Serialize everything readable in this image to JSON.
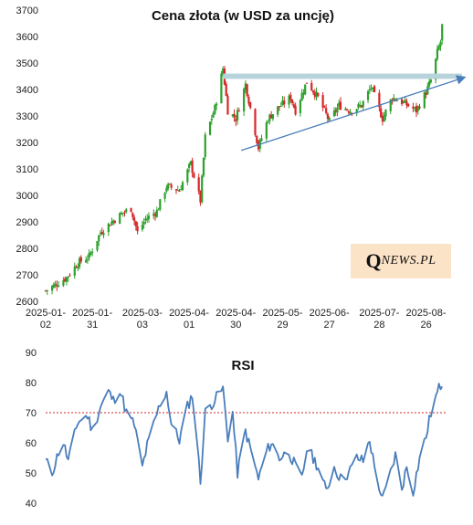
{
  "chart_data": [
    {
      "type": "candlestick",
      "title": "Cena złota (w USD za uncję)",
      "ylim": [
        2600,
        3700
      ],
      "yticks": [
        2600,
        2700,
        2800,
        2900,
        3000,
        3100,
        3200,
        3300,
        3400,
        3500,
        3600,
        3700
      ],
      "xlim": [
        "2025-01-02",
        "2025-09-06"
      ],
      "xtick_dates": [
        "2025-01-02",
        "2025-01-31",
        "2025-03-03",
        "2025-04-01",
        "2025-04-30",
        "2025-05-29",
        "2025-06-27",
        "2025-07-28",
        "2025-08-26"
      ],
      "xtick_labels": [
        [
          "2025-01-",
          "02"
        ],
        [
          "2025-01-",
          "31"
        ],
        [
          "2025-03-",
          "03"
        ],
        [
          "2025-04-",
          "01"
        ],
        [
          "2025-04-",
          "30"
        ],
        [
          "2025-05-",
          "29"
        ],
        [
          "2025-06-",
          "27"
        ],
        [
          "2025-07-",
          "28"
        ],
        [
          "2025-08-",
          "26"
        ]
      ],
      "close_path": [
        [
          "2025-01-02",
          2640
        ],
        [
          "2025-01-08",
          2662
        ],
        [
          "2025-01-15",
          2690
        ],
        [
          "2025-01-22",
          2745
        ],
        [
          "2025-01-29",
          2770
        ],
        [
          "2025-02-05",
          2860
        ],
        [
          "2025-02-12",
          2900
        ],
        [
          "2025-02-19",
          2935
        ],
        [
          "2025-02-24",
          2950
        ],
        [
          "2025-02-28",
          2860
        ],
        [
          "2025-03-05",
          2910
        ],
        [
          "2025-03-12",
          2940
        ],
        [
          "2025-03-18",
          3035
        ],
        [
          "2025-03-26",
          3020
        ],
        [
          "2025-04-02",
          3120
        ],
        [
          "2025-04-08",
          2980
        ],
        [
          "2025-04-11",
          3220
        ],
        [
          "2025-04-17",
          3330
        ],
        [
          "2025-04-22",
          3480
        ],
        [
          "2025-04-25",
          3320
        ],
        [
          "2025-04-30",
          3290
        ],
        [
          "2025-05-06",
          3420
        ],
        [
          "2025-05-09",
          3330
        ],
        [
          "2025-05-14",
          3180
        ],
        [
          "2025-05-20",
          3290
        ],
        [
          "2025-05-26",
          3330
        ],
        [
          "2025-06-03",
          3370
        ],
        [
          "2025-06-06",
          3320
        ],
        [
          "2025-06-13",
          3430
        ],
        [
          "2025-06-20",
          3370
        ],
        [
          "2025-06-27",
          3280
        ],
        [
          "2025-07-03",
          3340
        ],
        [
          "2025-07-10",
          3320
        ],
        [
          "2025-07-17",
          3340
        ],
        [
          "2025-07-23",
          3410
        ],
        [
          "2025-07-30",
          3290
        ],
        [
          "2025-08-05",
          3370
        ],
        [
          "2025-08-12",
          3350
        ],
        [
          "2025-08-20",
          3320
        ],
        [
          "2025-08-26",
          3390
        ],
        [
          "2025-08-30",
          3450
        ],
        [
          "2025-09-02",
          3540
        ],
        [
          "2025-09-04",
          3580
        ],
        [
          "2025-09-05",
          3640
        ],
        [
          "2025-09-06",
          3630
        ]
      ],
      "resistance_band": {
        "y_low": 3440,
        "y_high": 3460,
        "x_start": "2025-04-22",
        "x_end": "2025-09-06"
      },
      "trendline": {
        "start": [
          "2025-04-22",
          3170
        ],
        "end": [
          "2025-09-06",
          3445
        ]
      },
      "colors": {
        "up": "#2ca02c",
        "down": "#d62728",
        "band": "#b7d3dc",
        "trendline": "#4a7ebb"
      },
      "grid": false
    },
    {
      "type": "line",
      "title": "RSI",
      "ylim": [
        40,
        90
      ],
      "yticks": [
        40,
        50,
        60,
        70,
        80,
        90
      ],
      "reference_line": {
        "y": 70,
        "color": "#d62728",
        "style": "dotted"
      },
      "line_color": "#4a7ebb",
      "points": [
        [
          "2025-01-02",
          54
        ],
        [
          "2025-01-06",
          50
        ],
        [
          "2025-01-10",
          57
        ],
        [
          "2025-01-13",
          60
        ],
        [
          "2025-01-16",
          54
        ],
        [
          "2025-01-22",
          67
        ],
        [
          "2025-01-28",
          69
        ],
        [
          "2025-01-31",
          64
        ],
        [
          "2025-02-05",
          72
        ],
        [
          "2025-02-10",
          77
        ],
        [
          "2025-02-13",
          74
        ],
        [
          "2025-02-17",
          78
        ],
        [
          "2025-02-21",
          70
        ],
        [
          "2025-02-26",
          66
        ],
        [
          "2025-03-03",
          52
        ],
        [
          "2025-03-06",
          59
        ],
        [
          "2025-03-10",
          66
        ],
        [
          "2025-03-14",
          73
        ],
        [
          "2025-03-18",
          77
        ],
        [
          "2025-03-21",
          66
        ],
        [
          "2025-03-26",
          61
        ],
        [
          "2025-03-31",
          72
        ],
        [
          "2025-04-03",
          76
        ],
        [
          "2025-04-06",
          60
        ],
        [
          "2025-04-08",
          47
        ],
        [
          "2025-04-11",
          70
        ],
        [
          "2025-04-15",
          73
        ],
        [
          "2025-04-18",
          75
        ],
        [
          "2025-04-22",
          78
        ],
        [
          "2025-04-25",
          62
        ],
        [
          "2025-04-28",
          70
        ],
        [
          "2025-05-01",
          50
        ],
        [
          "2025-05-06",
          64
        ],
        [
          "2025-05-09",
          58
        ],
        [
          "2025-05-14",
          48
        ],
        [
          "2025-05-19",
          57
        ],
        [
          "2025-05-22",
          60
        ],
        [
          "2025-05-27",
          55
        ],
        [
          "2025-06-02",
          57
        ],
        [
          "2025-06-06",
          52
        ],
        [
          "2025-06-10",
          48
        ],
        [
          "2025-06-13",
          58
        ],
        [
          "2025-06-17",
          55
        ],
        [
          "2025-06-20",
          52
        ],
        [
          "2025-06-25",
          44
        ],
        [
          "2025-06-30",
          52
        ],
        [
          "2025-07-04",
          48
        ],
        [
          "2025-07-09",
          50
        ],
        [
          "2025-07-14",
          55
        ],
        [
          "2025-07-18",
          54
        ],
        [
          "2025-07-22",
          61
        ],
        [
          "2025-07-25",
          52
        ],
        [
          "2025-07-30",
          41
        ],
        [
          "2025-08-04",
          50
        ],
        [
          "2025-08-07",
          56
        ],
        [
          "2025-08-11",
          45
        ],
        [
          "2025-08-14",
          52
        ],
        [
          "2025-08-18",
          44
        ],
        [
          "2025-08-22",
          55
        ],
        [
          "2025-08-26",
          62
        ],
        [
          "2025-08-29",
          70
        ],
        [
          "2025-09-01",
          75
        ],
        [
          "2025-09-03",
          78
        ],
        [
          "2025-09-05",
          80
        ],
        [
          "2025-09-06",
          73
        ]
      ],
      "grid": false
    }
  ],
  "watermark": {
    "big": "Q",
    "small": "NEWS.PL"
  }
}
